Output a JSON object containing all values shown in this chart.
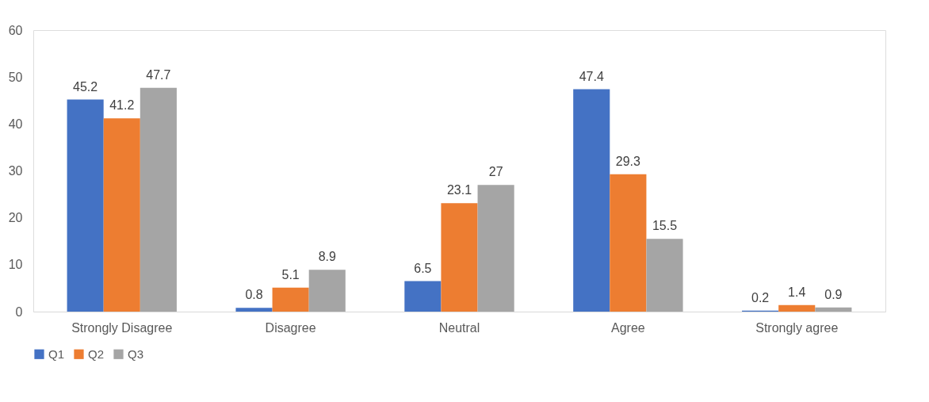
{
  "chart_data": {
    "type": "bar",
    "categories": [
      "Strongly Disagree",
      "Disagree",
      "Neutral",
      "Agree",
      "Strongly agree"
    ],
    "series": [
      {
        "name": "Q1",
        "color": "#4472c4",
        "values": [
          45.2,
          0.8,
          6.5,
          47.4,
          0.2
        ]
      },
      {
        "name": "Q2",
        "color": "#ed7d31",
        "values": [
          41.2,
          5.1,
          23.1,
          29.3,
          1.4
        ]
      },
      {
        "name": "Q3",
        "color": "#a5a5a5",
        "values": [
          47.7,
          8.9,
          27,
          15.5,
          0.9
        ]
      }
    ],
    "ylim": [
      0,
      60
    ],
    "yticks": [
      0,
      10,
      20,
      30,
      40,
      50,
      60
    ],
    "grid": false,
    "legend": "bottom",
    "data_labels": true
  }
}
